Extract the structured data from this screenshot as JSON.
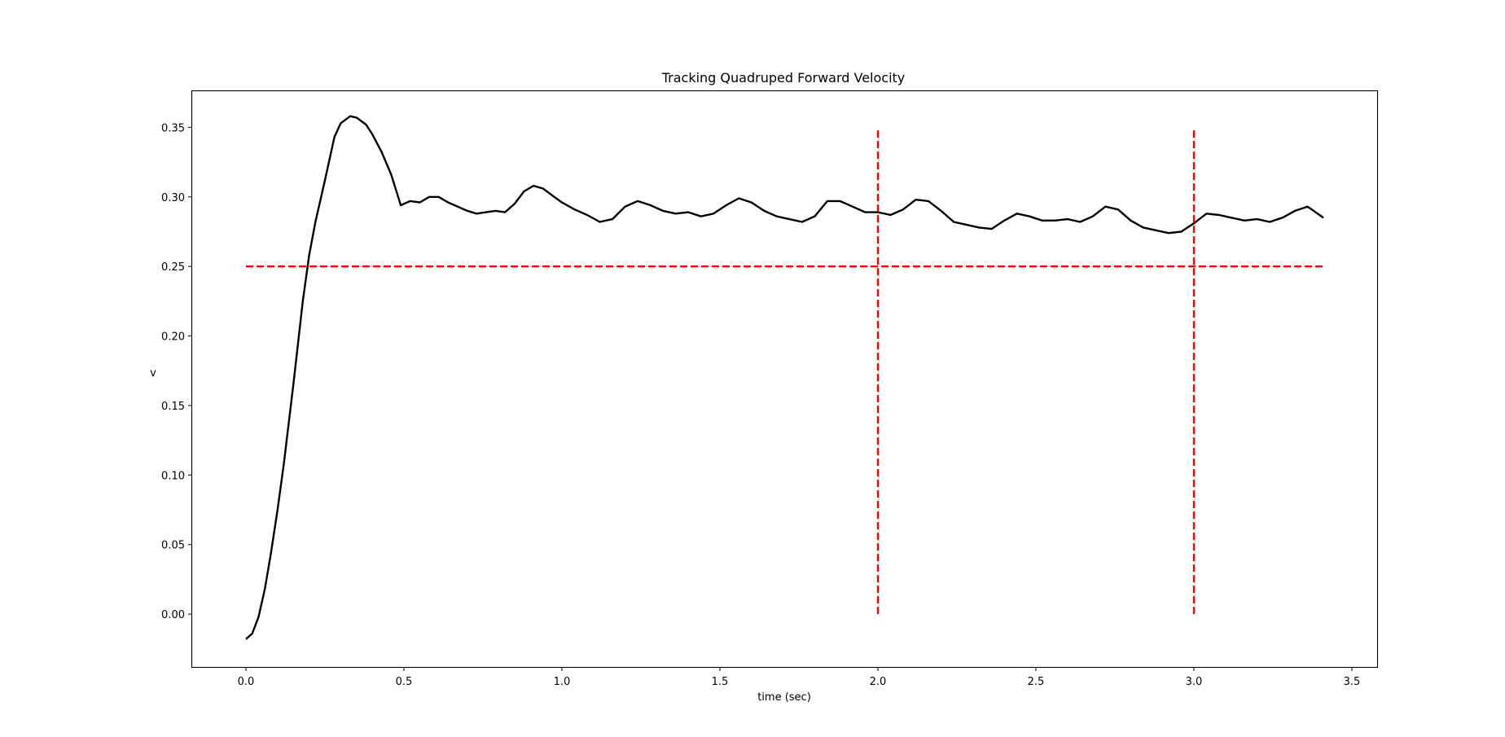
{
  "chart_data": {
    "type": "line",
    "title": "Tracking Quadruped Forward Velocity",
    "xlabel": "time (sec)",
    "ylabel": "v",
    "xlim": [
      -0.17,
      3.58
    ],
    "ylim": [
      -0.038,
      0.376
    ],
    "xticks": [
      0.0,
      0.5,
      1.0,
      1.5,
      2.0,
      2.5,
      3.0,
      3.5
    ],
    "xtick_labels": [
      "0.0",
      "0.5",
      "1.0",
      "1.5",
      "2.0",
      "2.5",
      "3.0",
      "3.5"
    ],
    "yticks": [
      0.0,
      0.05,
      0.1,
      0.15,
      0.2,
      0.25,
      0.3,
      0.35
    ],
    "ytick_labels": [
      "0.00",
      "0.05",
      "0.10",
      "0.15",
      "0.20",
      "0.25",
      "0.30",
      "0.35"
    ],
    "grid": false,
    "series": [
      {
        "color": "#000000",
        "style": "solid",
        "x": [
          0.0,
          0.02,
          0.04,
          0.06,
          0.08,
          0.1,
          0.12,
          0.15,
          0.18,
          0.2,
          0.22,
          0.25,
          0.28,
          0.3,
          0.33,
          0.35,
          0.38,
          0.4,
          0.43,
          0.46,
          0.49,
          0.52,
          0.55,
          0.58,
          0.61,
          0.64,
          0.67,
          0.7,
          0.73,
          0.76,
          0.79,
          0.82,
          0.85,
          0.88,
          0.91,
          0.94,
          0.97,
          1.0,
          1.04,
          1.08,
          1.12,
          1.16,
          1.2,
          1.24,
          1.28,
          1.32,
          1.36,
          1.4,
          1.44,
          1.48,
          1.52,
          1.56,
          1.6,
          1.64,
          1.68,
          1.72,
          1.76,
          1.8,
          1.84,
          1.88,
          1.92,
          1.96,
          2.0,
          2.04,
          2.08,
          2.12,
          2.16,
          2.2,
          2.24,
          2.28,
          2.32,
          2.36,
          2.4,
          2.44,
          2.48,
          2.52,
          2.56,
          2.6,
          2.64,
          2.68,
          2.72,
          2.76,
          2.8,
          2.84,
          2.88,
          2.92,
          2.96,
          3.0,
          3.04,
          3.08,
          3.12,
          3.16,
          3.2,
          3.24,
          3.28,
          3.32,
          3.36,
          3.41
        ],
        "y": [
          -0.018,
          -0.014,
          -0.002,
          0.018,
          0.045,
          0.075,
          0.108,
          0.165,
          0.225,
          0.258,
          0.282,
          0.312,
          0.343,
          0.353,
          0.358,
          0.357,
          0.352,
          0.345,
          0.332,
          0.316,
          0.294,
          0.297,
          0.296,
          0.3,
          0.3,
          0.296,
          0.293,
          0.29,
          0.288,
          0.289,
          0.29,
          0.289,
          0.295,
          0.304,
          0.308,
          0.306,
          0.301,
          0.296,
          0.291,
          0.287,
          0.282,
          0.284,
          0.293,
          0.297,
          0.294,
          0.29,
          0.288,
          0.289,
          0.286,
          0.288,
          0.294,
          0.299,
          0.296,
          0.29,
          0.286,
          0.284,
          0.282,
          0.286,
          0.297,
          0.297,
          0.293,
          0.289,
          0.289,
          0.287,
          0.291,
          0.298,
          0.297,
          0.29,
          0.282,
          0.28,
          0.278,
          0.277,
          0.283,
          0.288,
          0.286,
          0.283,
          0.283,
          0.284,
          0.282,
          0.286,
          0.293,
          0.291,
          0.283,
          0.278,
          0.276,
          0.274,
          0.275,
          0.281,
          0.288,
          0.287,
          0.285,
          0.283,
          0.284,
          0.282,
          0.285,
          0.29,
          0.293,
          0.285
        ]
      },
      {
        "color": "#ff0000",
        "style": "dashed",
        "x": [
          0.0,
          3.41
        ],
        "y": [
          0.25,
          0.25
        ]
      },
      {
        "color": "#ff0000",
        "style": "dashed",
        "x": [
          2.0,
          2.0
        ],
        "y": [
          0.0,
          0.35
        ]
      },
      {
        "color": "#ff0000",
        "style": "dashed",
        "x": [
          3.0,
          3.0
        ],
        "y": [
          0.0,
          0.35
        ]
      }
    ]
  }
}
